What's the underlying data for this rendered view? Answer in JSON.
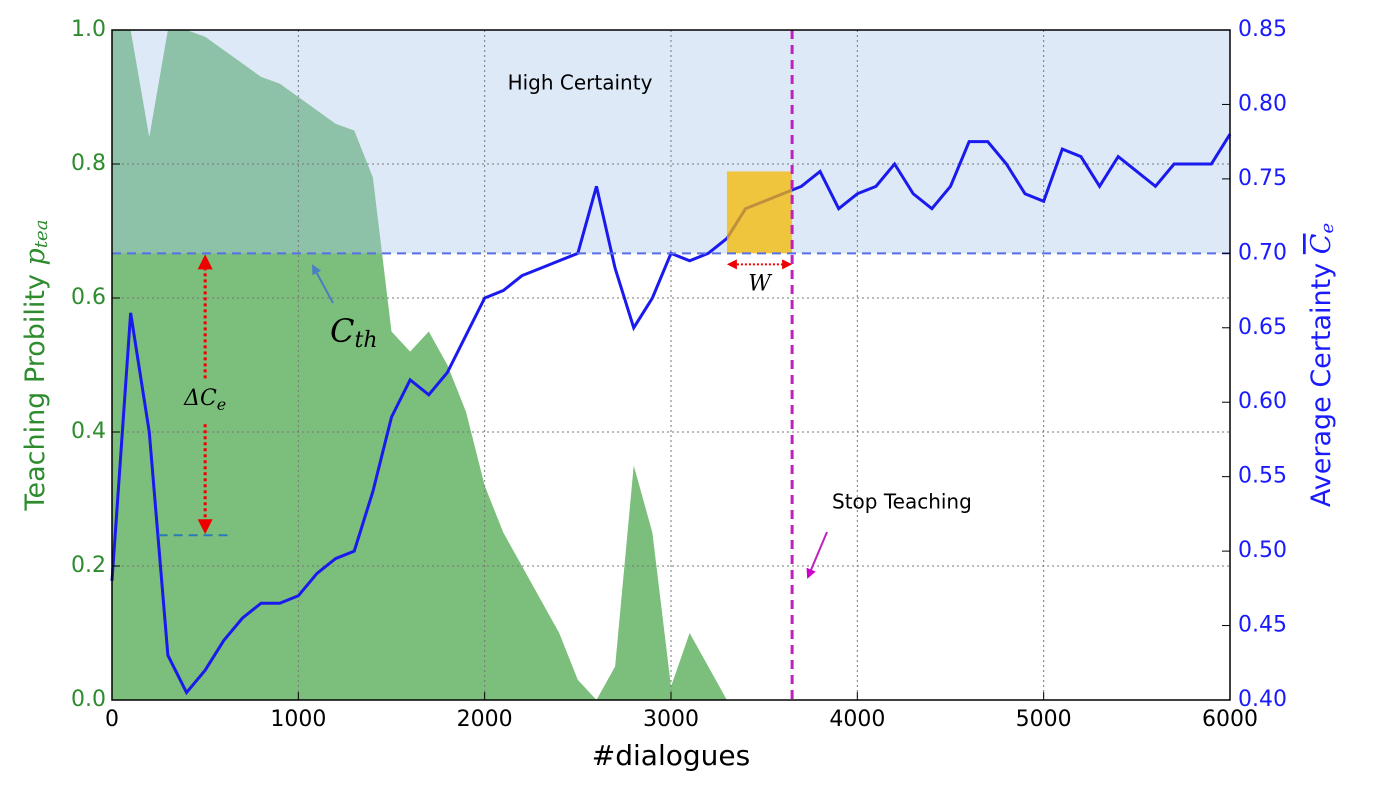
{
  "chart_data": {
    "type": "area-line",
    "x_label": "#dialogues",
    "y_label": {
      "text": "Teaching Probility ",
      "symbol": "p",
      "sub": "tea"
    },
    "y2_label": {
      "text": "Average Certainty ",
      "symbol": "C",
      "sub": "e"
    },
    "x": [
      0,
      100,
      200,
      300,
      400,
      500,
      600,
      700,
      800,
      900,
      1000,
      1100,
      1200,
      1300,
      1400,
      1500,
      1600,
      1700,
      1800,
      1900,
      2000,
      2100,
      2200,
      2300,
      2400,
      2500,
      2600,
      2700,
      2800,
      2900,
      3000,
      3100,
      3200,
      3300,
      3400,
      3500,
      3600,
      3700,
      3800,
      3900,
      4000,
      4100,
      4200,
      4300,
      4400,
      4500,
      4600,
      4700,
      4800,
      4900,
      5000,
      5100,
      5200,
      5300,
      5400,
      5500,
      5600,
      5700,
      5800,
      5900,
      6000
    ],
    "series": [
      {
        "name": "Teaching Probility",
        "color": "#7cbf7c",
        "axis": "y",
        "values": [
          1.0,
          1.0,
          0.84,
          1.0,
          1.0,
          0.99,
          0.97,
          0.95,
          0.93,
          0.92,
          0.9,
          0.88,
          0.86,
          0.85,
          0.78,
          0.55,
          0.52,
          0.55,
          0.5,
          0.43,
          0.32,
          0.25,
          0.2,
          0.15,
          0.1,
          0.03,
          0,
          0.05,
          0.35,
          0.25,
          0.02,
          0.1,
          0.05,
          0,
          0,
          0,
          0,
          0,
          0,
          0,
          0,
          0,
          0,
          0,
          0,
          0,
          0,
          0,
          0,
          0,
          0,
          0,
          0,
          0,
          0,
          0,
          0,
          0,
          0,
          0,
          0
        ]
      },
      {
        "name": "Average Certainty",
        "color": "#1a1aee",
        "axis": "y2",
        "values": [
          0.48,
          0.66,
          0.58,
          0.43,
          0.405,
          0.42,
          0.44,
          0.455,
          0.465,
          0.465,
          0.47,
          0.485,
          0.495,
          0.5,
          0.54,
          0.59,
          0.615,
          0.605,
          0.62,
          0.645,
          0.67,
          0.675,
          0.685,
          0.69,
          0.695,
          0.7,
          0.745,
          0.69,
          0.65,
          0.67,
          0.7,
          0.695,
          0.7,
          0.71,
          0.73,
          0.735,
          0.74,
          0.745,
          0.755,
          0.73,
          0.74,
          0.745,
          0.76,
          0.74,
          0.73,
          0.745,
          0.775,
          0.775,
          0.76,
          0.74,
          0.735,
          0.77,
          0.765,
          0.745,
          0.765,
          0.755,
          0.745,
          0.76,
          0.76,
          0.76,
          0.78
        ]
      }
    ],
    "xlim": [
      0,
      6000
    ],
    "xticks": [
      0,
      1000,
      2000,
      3000,
      4000,
      5000,
      6000
    ],
    "ylim": [
      0,
      1
    ],
    "yticks": [
      {
        "value": 0,
        "label": "0.0"
      },
      {
        "value": 0.2,
        "label": "0.2"
      },
      {
        "value": 0.4,
        "label": "0.4"
      },
      {
        "value": 0.6,
        "label": "0.6"
      },
      {
        "value": 0.8,
        "label": "0.8"
      },
      {
        "value": 1,
        "label": "1.0"
      }
    ],
    "y2lim": [
      0.4,
      0.85
    ],
    "y2ticks": [
      {
        "value": 0.4,
        "label": "0.40"
      },
      {
        "value": 0.45,
        "label": "0.45"
      },
      {
        "value": 0.5,
        "label": "0.50"
      },
      {
        "value": 0.55,
        "label": "0.55"
      },
      {
        "value": 0.6,
        "label": "0.60"
      },
      {
        "value": 0.65,
        "label": "0.65"
      },
      {
        "value": 0.7,
        "label": "0.70"
      },
      {
        "value": 0.75,
        "label": "0.75"
      },
      {
        "value": 0.8,
        "label": "0.80"
      },
      {
        "value": 0.85,
        "label": "0.85"
      }
    ],
    "grid": true,
    "threshold": {
      "value": 0.7,
      "label": {
        "main": "C",
        "sub": "th"
      }
    },
    "high_region_label": "High Certainty",
    "stop": {
      "x": 3650,
      "label": "Stop Teaching"
    },
    "window": {
      "x": [
        3300,
        3650
      ],
      "y2": [
        0.7,
        0.755
      ],
      "label": "W"
    },
    "delta": {
      "x": 500,
      "y2": [
        0.7,
        0.508
      ],
      "label": {
        "main": "ΔC",
        "sub": "e"
      }
    }
  }
}
